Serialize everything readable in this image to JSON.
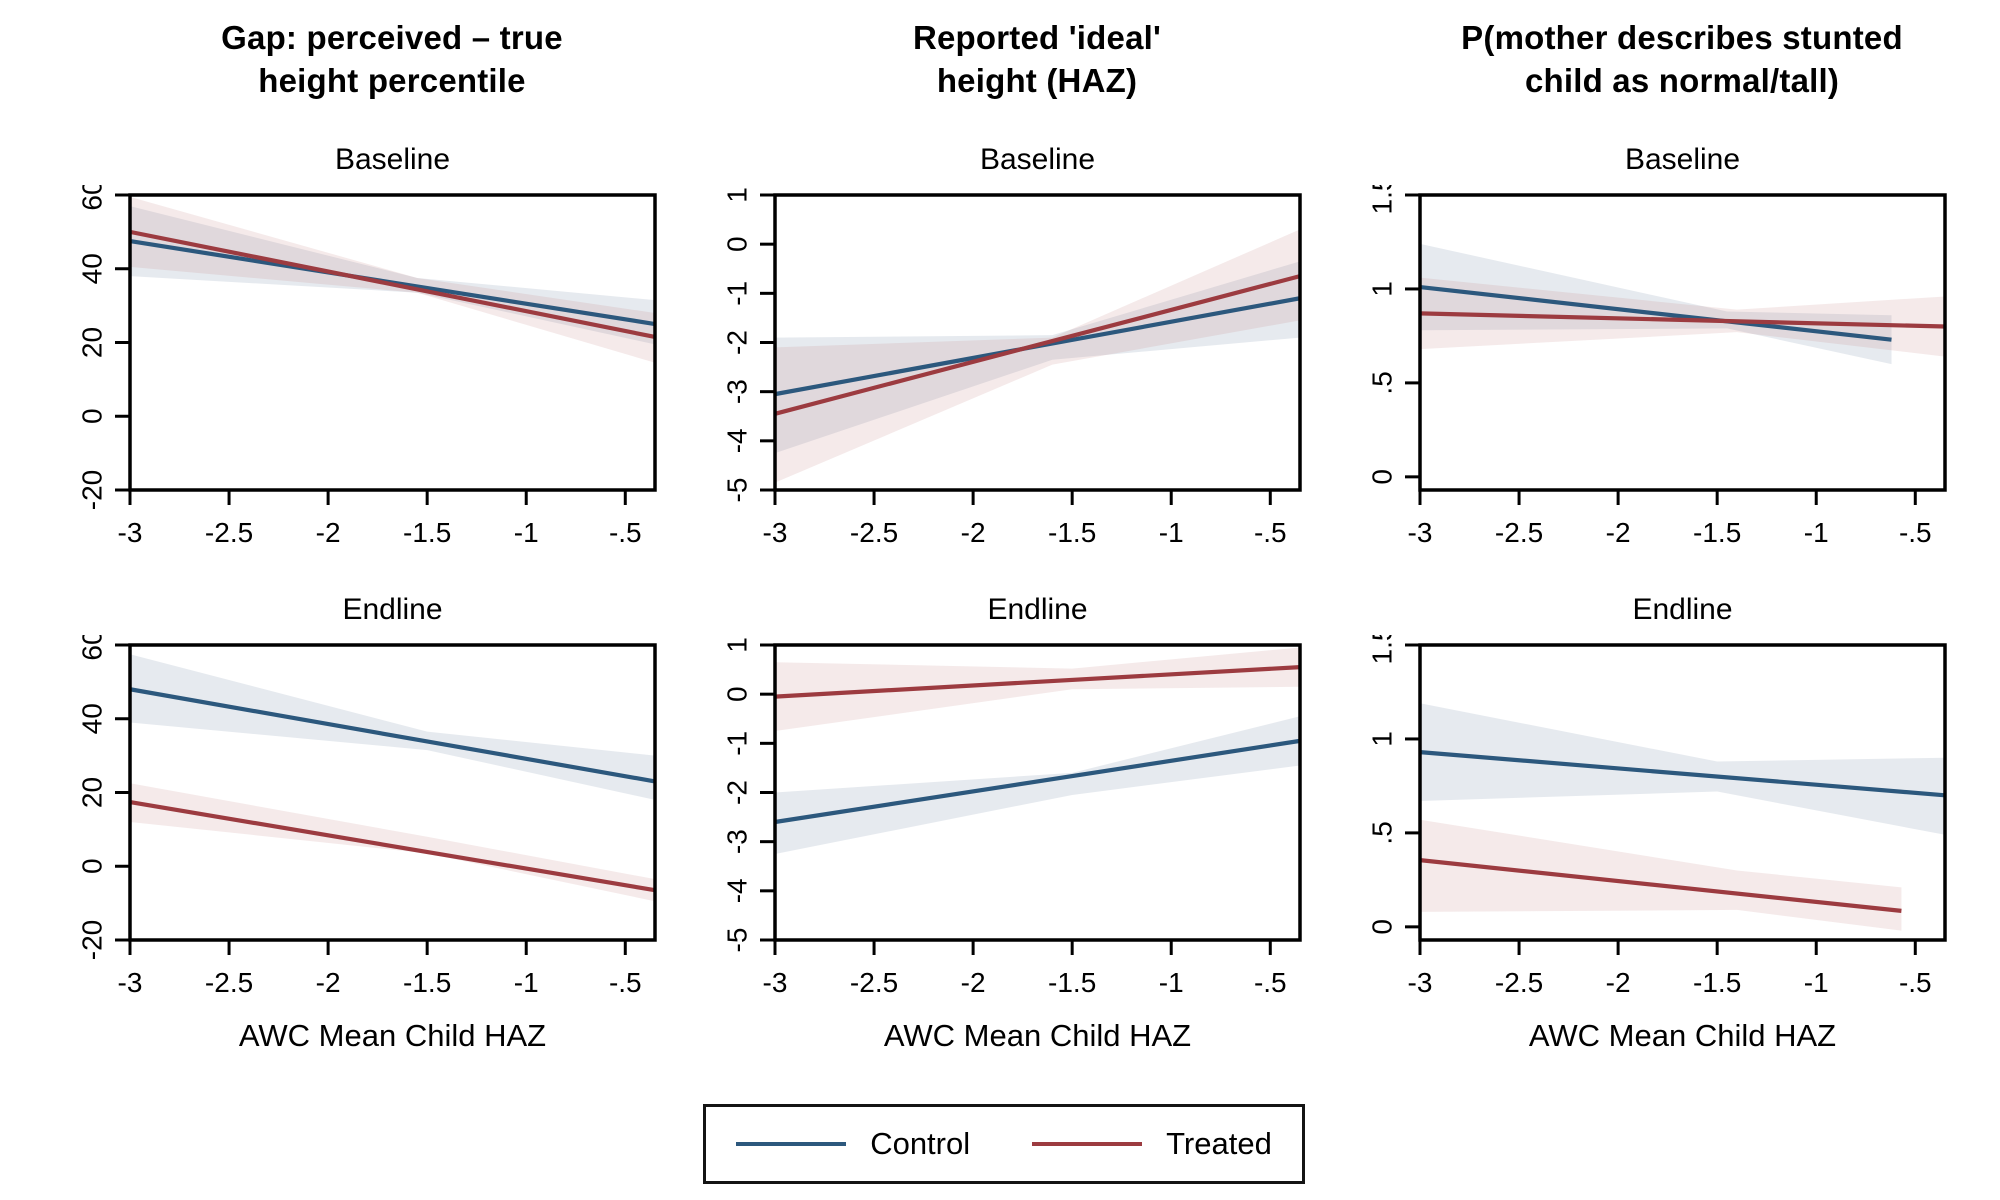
{
  "figure": {
    "row_labels": [
      "Baseline",
      "Endline"
    ],
    "xlabel": "AWC Mean Child HAZ",
    "legend": {
      "control_label": "Control",
      "treated_label": "Treated"
    },
    "colors": {
      "control_line": "#2c587d",
      "treated_line": "#9c3b40",
      "control_band": "rgba(100,122,158,0.16)",
      "treated_band": "rgba(192,124,124,0.16)",
      "axis": "#000000"
    }
  },
  "chart_data": {
    "type": "line",
    "x_axis": {
      "label": "AWC Mean Child HAZ",
      "xlim": [
        -3,
        -0.35
      ],
      "tick_values": [
        -3,
        -2.5,
        -2,
        -1.5,
        -1,
        -0.5
      ],
      "tick_labels": [
        "-3",
        "-2.5",
        "-2",
        "-1.5",
        "-1",
        "-.5"
      ]
    },
    "legend_entries": [
      "Control",
      "Treated"
    ],
    "columns": [
      {
        "title_line1": "Gap: perceived – true",
        "title_line2": "height percentile",
        "ylim": [
          -20,
          60
        ],
        "ytick_values": [
          -20,
          0,
          20,
          40,
          60
        ],
        "ytick_labels": [
          "-20",
          "0",
          "20",
          "40",
          "60"
        ],
        "baseline": {
          "control": {
            "x": [
              -3,
              -0.35
            ],
            "y": [
              47.5,
              25.0
            ],
            "ci_x": [
              -3,
              -1.55,
              -0.35
            ],
            "ci_lo": [
              38.0,
              33.5,
              19.5
            ],
            "ci_hi": [
              57.0,
              37.5,
              31.5
            ]
          },
          "treated": {
            "x": [
              -3,
              -0.35
            ],
            "y": [
              50.0,
              21.5
            ],
            "ci_x": [
              -3,
              -1.55,
              -0.35
            ],
            "ci_lo": [
              40.5,
              33.5,
              14.5
            ],
            "ci_hi": [
              59.5,
              37.5,
              28.0
            ]
          }
        },
        "endline": {
          "control": {
            "x": [
              -3,
              -0.35
            ],
            "y": [
              48.0,
              23.0
            ],
            "ci_x": [
              -3,
              -1.5,
              -0.35
            ],
            "ci_lo": [
              39.0,
              31.5,
              18.0
            ],
            "ci_hi": [
              57.5,
              36.5,
              30.0
            ]
          },
          "treated": {
            "x": [
              -3,
              -0.35
            ],
            "y": [
              17.4,
              -6.5
            ],
            "ci_x": [
              -3,
              -1.5,
              -0.35
            ],
            "ci_lo": [
              12.0,
              3.5,
              -9.5
            ],
            "ci_hi": [
              22.5,
              8.0,
              -3.5
            ]
          }
        }
      },
      {
        "title_line1": "Reported 'ideal'",
        "title_line2": "height (HAZ)",
        "ylim": [
          -5,
          1
        ],
        "ytick_values": [
          -5,
          -4,
          -3,
          -2,
          -1,
          0,
          1
        ],
        "ytick_labels": [
          "-5",
          "-4",
          "-3",
          "-2",
          "-1",
          "0",
          "1"
        ],
        "baseline": {
          "control": {
            "x": [
              -3,
              -0.35
            ],
            "y": [
              -3.05,
              -1.1
            ],
            "ci_x": [
              -3,
              -1.6,
              -0.35
            ],
            "ci_lo": [
              -4.25,
              -2.35,
              -1.9
            ],
            "ci_hi": [
              -1.9,
              -1.85,
              -0.35
            ]
          },
          "treated": {
            "x": [
              -3,
              -0.35
            ],
            "y": [
              -3.45,
              -0.65
            ],
            "ci_x": [
              -3,
              -1.6,
              -0.35
            ],
            "ci_lo": [
              -4.85,
              -2.45,
              -1.55
            ],
            "ci_hi": [
              -2.1,
              -1.9,
              0.3
            ]
          }
        },
        "endline": {
          "control": {
            "x": [
              -3,
              -0.35
            ],
            "y": [
              -2.6,
              -0.95
            ],
            "ci_x": [
              -3,
              -1.5,
              -0.35
            ],
            "ci_lo": [
              -3.25,
              -2.05,
              -1.45
            ],
            "ci_hi": [
              -2.0,
              -1.6,
              -0.45
            ]
          },
          "treated": {
            "x": [
              -3,
              -0.35
            ],
            "y": [
              -0.05,
              0.55
            ],
            "ci_x": [
              -3,
              -1.5,
              -0.35
            ],
            "ci_lo": [
              -0.75,
              0.1,
              0.15
            ],
            "ci_hi": [
              0.65,
              0.52,
              0.95
            ]
          }
        }
      },
      {
        "title_line1": "P(mother describes stunted",
        "title_line2": "child as normal/tall)",
        "ylim": [
          -0.07,
          1.5
        ],
        "ytick_values": [
          0,
          0.5,
          1,
          1.5
        ],
        "ytick_labels": [
          "0",
          ".5",
          "1",
          "1.5"
        ],
        "baseline": {
          "control": {
            "x": [
              -3,
              -0.62
            ],
            "y": [
              1.01,
              0.73
            ],
            "ci_x": [
              -3,
              -1.45,
              -0.62
            ],
            "ci_lo": [
              0.78,
              0.79,
              0.6
            ],
            "ci_hi": [
              1.24,
              0.88,
              0.86
            ]
          },
          "treated": {
            "x": [
              -3,
              -0.35
            ],
            "y": [
              0.87,
              0.8
            ],
            "ci_x": [
              -3,
              -1.4,
              -0.35
            ],
            "ci_lo": [
              0.68,
              0.77,
              0.64
            ],
            "ci_hi": [
              1.06,
              0.89,
              0.96
            ]
          }
        },
        "endline": {
          "control": {
            "x": [
              -3,
              -0.35
            ],
            "y": [
              0.93,
              0.7
            ],
            "ci_x": [
              -3,
              -1.5,
              -0.35
            ],
            "ci_lo": [
              0.67,
              0.72,
              0.49
            ],
            "ci_hi": [
              1.19,
              0.88,
              0.9
            ]
          },
          "treated": {
            "x": [
              -3,
              -0.57
            ],
            "y": [
              0.355,
              0.085
            ],
            "ci_x": [
              -3,
              -1.4,
              -0.57
            ],
            "ci_lo": [
              0.08,
              0.09,
              -0.02
            ],
            "ci_hi": [
              0.57,
              0.3,
              0.21
            ]
          }
        }
      }
    ]
  }
}
